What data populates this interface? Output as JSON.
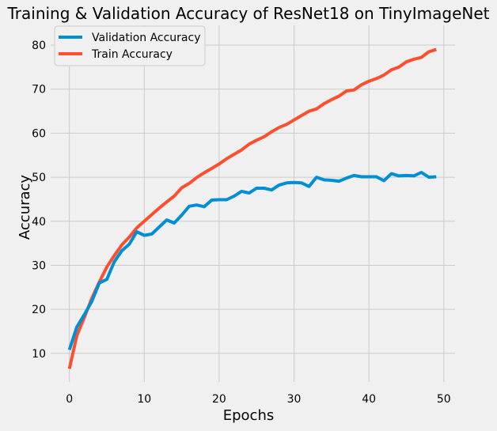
{
  "chart_data": {
    "type": "line",
    "title": "Training & Validation Accuracy of ResNet18 on TinyImageNet",
    "xlabel": "Epochs",
    "ylabel": "Accuracy",
    "xlim": [
      -2.5,
      51.5
    ],
    "ylim": [
      3.5,
      84.5
    ],
    "xticks": [
      0,
      10,
      20,
      30,
      40,
      50
    ],
    "yticks": [
      10,
      20,
      30,
      40,
      50,
      60,
      70,
      80
    ],
    "grid": true,
    "legend_position": "upper-left",
    "x": [
      0,
      1,
      2,
      3,
      4,
      5,
      6,
      7,
      8,
      9,
      10,
      11,
      12,
      13,
      14,
      15,
      16,
      17,
      18,
      19,
      20,
      21,
      22,
      23,
      24,
      25,
      26,
      27,
      28,
      29,
      30,
      31,
      32,
      33,
      34,
      35,
      36,
      37,
      38,
      39,
      40,
      41,
      42,
      43,
      44,
      45,
      46,
      47,
      48,
      49
    ],
    "series": [
      {
        "name": "Validation Accuracy",
        "color": "#008fd5",
        "values": [
          10.8,
          16.0,
          18.8,
          21.8,
          26.0,
          26.8,
          30.8,
          33.3,
          34.8,
          37.6,
          36.8,
          37.1,
          38.7,
          40.3,
          39.6,
          41.4,
          43.4,
          43.7,
          43.3,
          44.8,
          44.9,
          44.9,
          45.7,
          46.8,
          46.4,
          47.5,
          47.5,
          47.1,
          48.2,
          48.7,
          48.8,
          48.7,
          47.9,
          50.0,
          49.4,
          49.3,
          49.1,
          49.8,
          50.4,
          50.1,
          50.1,
          50.1,
          49.2,
          50.8,
          50.3,
          50.4,
          50.3,
          51.1,
          50.0,
          50.1
        ]
      },
      {
        "name": "Train Accuracy",
        "color": "#fc4f30",
        "values": [
          6.5,
          14.0,
          18.2,
          22.5,
          26.2,
          29.6,
          32.2,
          34.6,
          36.4,
          38.5,
          40.0,
          41.5,
          43.0,
          44.4,
          45.7,
          47.6,
          48.6,
          49.9,
          51.0,
          52.0,
          53.0,
          54.2,
          55.2,
          56.2,
          57.5,
          58.4,
          59.2,
          60.3,
          61.3,
          62.0,
          63.0,
          64.0,
          65.0,
          65.5,
          66.7,
          67.6,
          68.4,
          69.6,
          69.8,
          71.0,
          71.8,
          72.4,
          73.2,
          74.4,
          75.0,
          76.2,
          76.8,
          77.2,
          78.5,
          79.0
        ]
      }
    ]
  }
}
